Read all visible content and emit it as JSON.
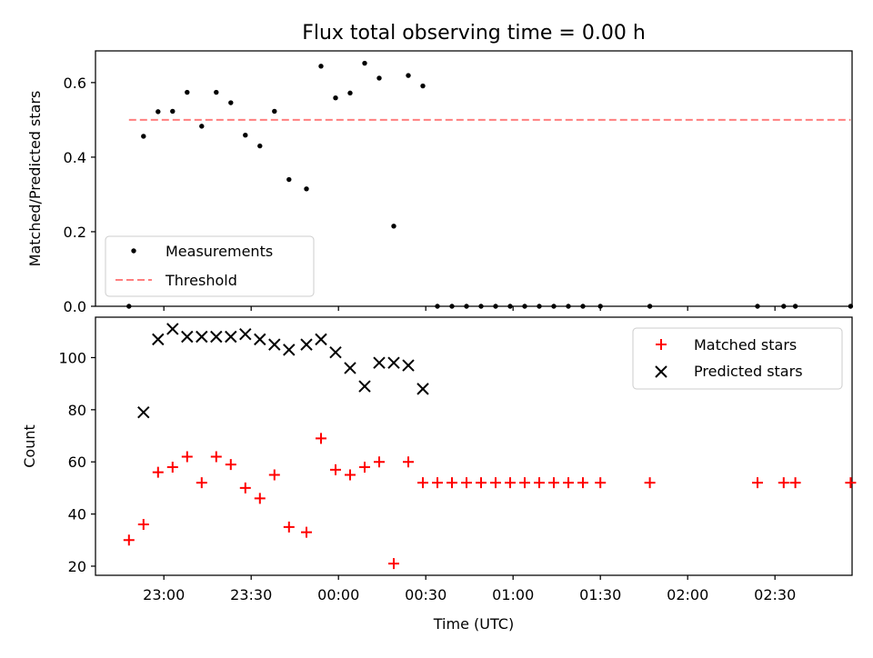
{
  "title": "Flux total observing time = 0.00 h",
  "chart_data": [
    {
      "type": "scatter",
      "ylabel": "Matched/Predicted stars",
      "xlabel": "",
      "xlim": [
        -38.5,
        221.5
      ],
      "ylim": [
        0,
        0.685
      ],
      "yticks": [
        0.0,
        0.2,
        0.4,
        0.6
      ],
      "ytick_labels": [
        "0.0",
        "0.2",
        "0.4",
        "0.6"
      ],
      "legend_position": "lower-left",
      "series": [
        {
          "name": "Measurements",
          "color": "#000000",
          "x": [
            -27,
            -22,
            -17,
            -12,
            -7,
            -2,
            3,
            8,
            13,
            18,
            23,
            28,
            34,
            39,
            44,
            49,
            54,
            59,
            64,
            69,
            74,
            79,
            84,
            89,
            94,
            99,
            104,
            109,
            114,
            119,
            124,
            129,
            135,
            152,
            189,
            198,
            202,
            221
          ],
          "y": [
            0.0,
            0.456,
            0.522,
            0.523,
            0.574,
            0.483,
            0.574,
            0.546,
            0.459,
            0.43,
            0.523,
            0.34,
            0.315,
            0.644,
            0.559,
            0.572,
            0.652,
            0.612,
            0.215,
            0.619,
            0.591,
            0.0,
            0.0,
            0.0,
            0.0,
            0.0,
            0.0,
            0.0,
            0.0,
            0.0,
            0.0,
            0.0,
            0.0,
            0.0,
            0.0,
            0.0,
            0.0,
            0.0
          ]
        },
        {
          "name": "Threshold",
          "color": "#ff7f7f",
          "style": "dashed",
          "x": [
            -27,
            221
          ],
          "y": [
            0.5,
            0.5
          ]
        }
      ]
    },
    {
      "type": "scatter",
      "ylabel": "Count",
      "xlabel": "Time (UTC)",
      "xlim": [
        -38.5,
        221.5
      ],
      "ylim": [
        16.5,
        115.5
      ],
      "yticks": [
        20,
        40,
        60,
        80,
        100
      ],
      "ytick_labels": [
        "20",
        "40",
        "60",
        "80",
        "100"
      ],
      "xticks": [
        -15,
        15,
        45,
        75,
        105,
        135,
        165,
        195
      ],
      "xtick_labels": [
        "23:00",
        "23:30",
        "00:00",
        "00:30",
        "01:00",
        "01:30",
        "02:00",
        "02:30"
      ],
      "legend_position": "upper-right",
      "series": [
        {
          "name": "Matched stars",
          "color": "#ff0000",
          "marker": "plus",
          "x": [
            -27,
            -22,
            -17,
            -12,
            -7,
            -2,
            3,
            8,
            13,
            18,
            23,
            28,
            34,
            39,
            44,
            49,
            54,
            59,
            64,
            69,
            74,
            79,
            84,
            89,
            94,
            99,
            104,
            109,
            114,
            119,
            124,
            129,
            135,
            152,
            189,
            198,
            202,
            221
          ],
          "y": [
            30,
            36,
            56,
            58,
            62,
            52,
            62,
            59,
            50,
            46,
            55,
            35,
            33,
            69,
            57,
            55,
            58,
            60,
            21,
            60,
            52,
            52,
            52,
            52,
            52,
            52,
            52,
            52,
            52,
            52,
            52,
            52,
            52,
            52,
            52,
            52,
            52,
            52
          ]
        },
        {
          "name": "Predicted stars",
          "color": "#000000",
          "marker": "x",
          "x": [
            -22,
            -17,
            -12,
            -7,
            -2,
            3,
            8,
            13,
            18,
            23,
            28,
            34,
            39,
            44,
            49,
            54,
            59,
            64,
            69,
            74
          ],
          "y": [
            79,
            107,
            111,
            108,
            108,
            108,
            108,
            109,
            107,
            105,
            103,
            105,
            107,
            102,
            96,
            89,
            98,
            98,
            97,
            88
          ]
        }
      ]
    }
  ]
}
